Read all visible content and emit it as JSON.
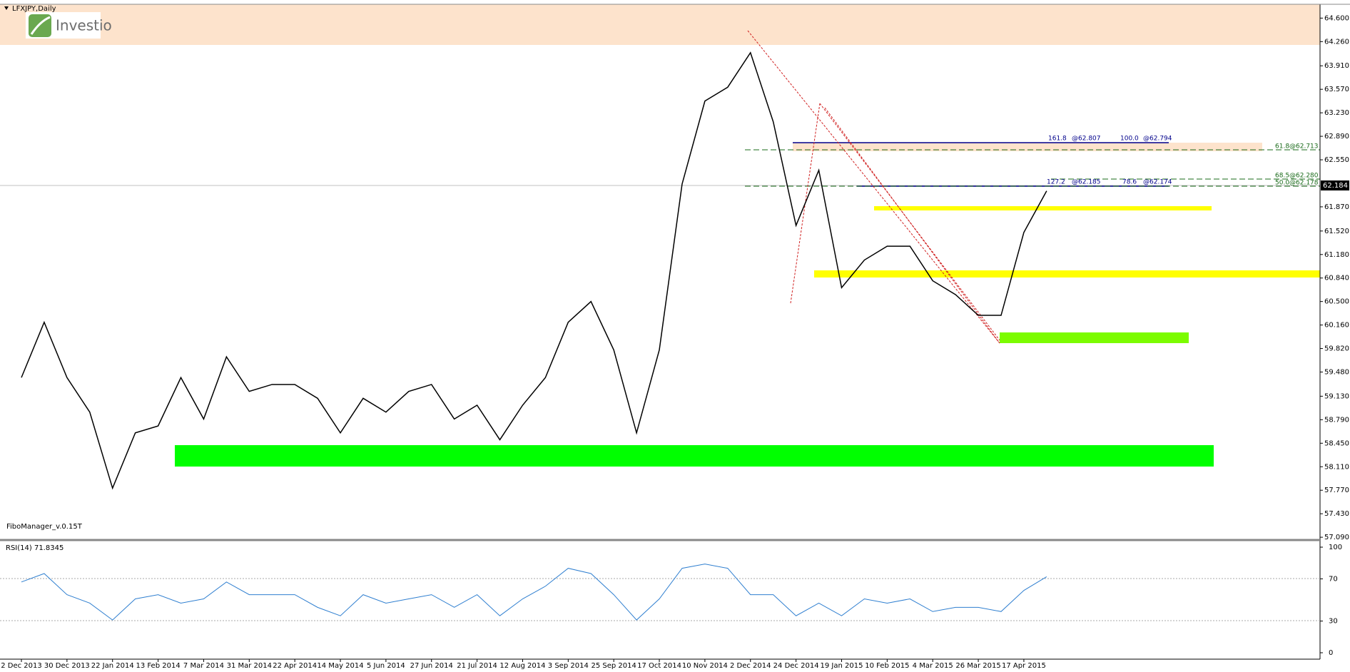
{
  "title": "LFXJPY,Daily",
  "logo": "Investio",
  "indicator_label": "FiboManager_v.0.15T",
  "current_price": "62.184",
  "fibo_labels": [
    "161.8",
    "@62.807",
    "100.0",
    "@62.794",
    "61.8",
    "@62.713",
    "68.5",
    "@62.280",
    "50.0",
    "@62.178",
    "127.2",
    "@62.185",
    "78.6",
    "@62.174"
  ],
  "chart_data": [
    {
      "type": "line",
      "color": "#000000",
      "categories": [
        "2 Dec 2013",
        null,
        "30 Dec 2013",
        null,
        "22 Jan 2014",
        null,
        "13 Feb 2014",
        null,
        "7 Mar 2014",
        null,
        "31 Mar 2014",
        null,
        "22 Apr 2014",
        null,
        "14 May 2014",
        null,
        "5 Jun 2014",
        null,
        "27 Jun 2014",
        null,
        "21 Jul 2014",
        null,
        "12 Aug 2014",
        null,
        "3 Sep 2014",
        null,
        "25 Sep 2014",
        null,
        "17 Oct 2014",
        null,
        "10 Nov 2014",
        null,
        "2 Dec 2014",
        null,
        "24 Dec 2014",
        null,
        "19 Jan 2015",
        null,
        "10 Feb 2015",
        null,
        "4 Mar 2015",
        null,
        "26 Mar 2015",
        null,
        "17 Apr 2015",
        null
      ],
      "values": [
        59.4,
        60.2,
        59.4,
        58.9,
        57.8,
        58.6,
        58.7,
        59.4,
        58.8,
        59.7,
        59.2,
        59.3,
        59.3,
        59.1,
        58.6,
        59.1,
        58.9,
        59.2,
        59.3,
        58.8,
        59.0,
        58.5,
        59.0,
        59.4,
        60.2,
        60.5,
        59.8,
        58.6,
        59.8,
        62.2,
        63.4,
        63.6,
        64.1,
        63.1,
        61.6,
        62.4,
        60.7,
        61.1,
        61.3,
        61.3,
        60.8,
        60.6,
        60.3,
        60.3,
        61.5,
        62.1
      ],
      "ylim": [
        57.06,
        64.8
      ],
      "yticks": [
        {
          "value": 64.6,
          "label": "64.600"
        },
        {
          "value": 64.26,
          "label": "64.260"
        },
        {
          "value": 63.91,
          "label": "63.910"
        },
        {
          "value": 63.57,
          "label": "63.570"
        },
        {
          "value": 63.23,
          "label": "63.230"
        },
        {
          "value": 62.89,
          "label": "62.890"
        },
        {
          "value": 62.55,
          "label": "62.550"
        },
        {
          "value": 61.87,
          "label": "61.870"
        },
        {
          "value": 61.52,
          "label": "61.520"
        },
        {
          "value": 61.18,
          "label": "61.180"
        },
        {
          "value": 60.84,
          "label": "60.840"
        },
        {
          "value": 60.5,
          "label": "60.500"
        },
        {
          "value": 60.16,
          "label": "60.160"
        },
        {
          "value": 59.82,
          "label": "59.820"
        },
        {
          "value": 59.48,
          "label": "59.480"
        },
        {
          "value": 59.13,
          "label": "59.130"
        },
        {
          "value": 58.79,
          "label": "58.790"
        },
        {
          "value": 58.45,
          "label": "58.450"
        },
        {
          "value": 58.11,
          "label": "58.110"
        },
        {
          "value": 57.77,
          "label": "57.770"
        },
        {
          "value": 57.43,
          "label": "57.430"
        },
        {
          "value": 57.09,
          "label": "57.090"
        }
      ]
    },
    {
      "type": "line",
      "title": "RSI(14) 71.8345",
      "color": "#2f7fd0",
      "values": [
        67,
        75,
        55,
        47,
        31,
        51,
        55,
        47,
        51,
        67,
        55,
        55,
        55,
        43,
        35,
        55,
        47,
        51,
        55,
        43,
        55,
        35,
        51,
        63,
        80,
        75,
        55,
        31,
        51,
        80,
        84,
        80,
        55,
        55,
        35,
        47,
        35,
        51,
        47,
        51,
        39,
        43,
        43,
        39,
        59,
        72
      ],
      "ylim": [
        0,
        100
      ],
      "yticks": [
        0,
        30,
        70,
        100
      ]
    }
  ]
}
